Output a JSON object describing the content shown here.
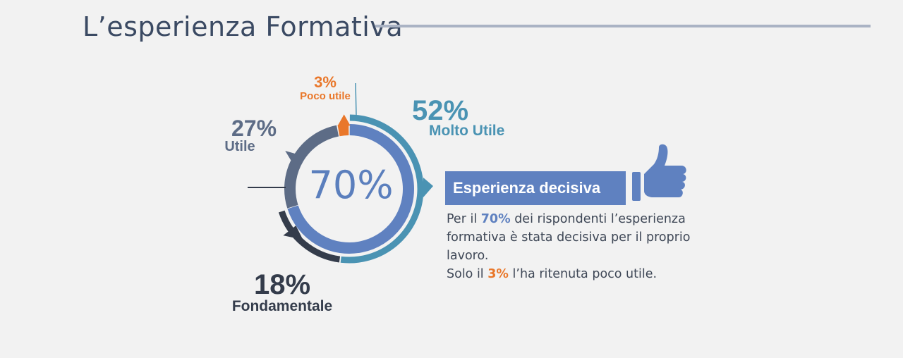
{
  "title": "L’esperienza Formativa",
  "chart_data": {
    "type": "pie",
    "variant": "donut",
    "categories": [
      "Molto Utile",
      "Fondamentale",
      "Utile",
      "Poco utile"
    ],
    "values": [
      52,
      18,
      27,
      3
    ],
    "value_labels": [
      "52%",
      "18%",
      "27%",
      "3%"
    ],
    "colors": [
      "#4a93b3",
      "#343c4b",
      "#5d6c86",
      "#e9772a"
    ],
    "center_label": "70%",
    "center_color": "#5b7fbd",
    "inner_ring_color": "#5f81c0"
  },
  "callout": {
    "heading": "Esperienza decisiva",
    "text_1": "Per il ",
    "highlight_1": "70%",
    "text_2": " dei rispondenti l’esperienza formativa è stata decisiva per il proprio lavoro.",
    "text_3": "Solo il ",
    "highlight_2": "3%",
    "text_4": " l’ha ritenuta poco utile.",
    "icon": "thumbs-up-icon"
  }
}
